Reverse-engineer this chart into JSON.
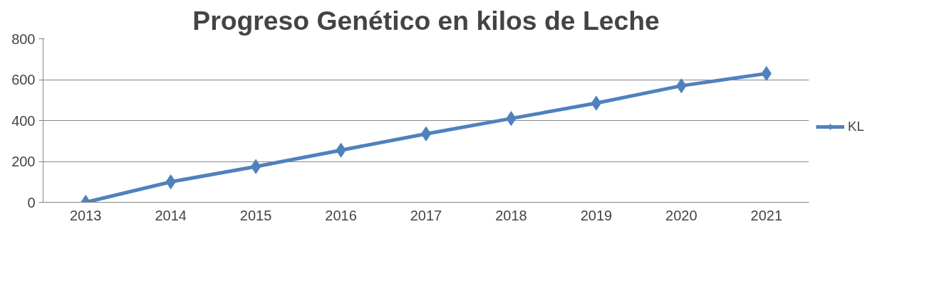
{
  "chart_data": {
    "type": "line",
    "title": "Progreso Genético en kilos de Leche",
    "categories": [
      "2013",
      "2014",
      "2015",
      "2016",
      "2017",
      "2018",
      "2019",
      "2020",
      "2021"
    ],
    "series": [
      {
        "name": "KL",
        "color": "#4f81bd",
        "values": [
          0,
          100,
          175,
          255,
          335,
          410,
          485,
          570,
          630
        ]
      }
    ],
    "ylim": [
      0,
      800
    ],
    "yticks": [
      0,
      200,
      400,
      600,
      800
    ],
    "grid": "y",
    "legend": "right",
    "marker": "diamond",
    "line_style": "solid"
  }
}
